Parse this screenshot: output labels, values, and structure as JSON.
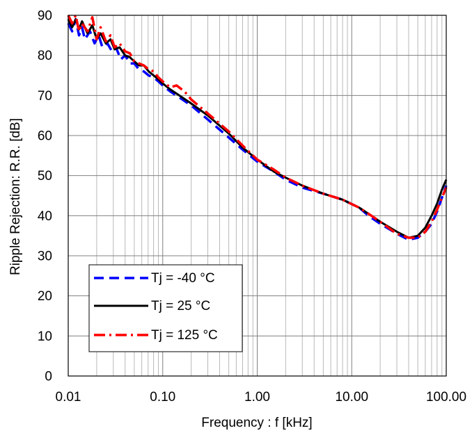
{
  "chart_data": {
    "type": "line",
    "xlabel": "Frequency : f [kHz]",
    "ylabel": "Ripple Rejection: R.R. [dB]",
    "x_scale": "log",
    "xlim": [
      0.01,
      100
    ],
    "ylim": [
      0,
      90
    ],
    "grid": true,
    "legend_position": "bottom-left",
    "x_ticks": [
      {
        "value": 0.01,
        "label": "0.01"
      },
      {
        "value": 0.1,
        "label": "0.10"
      },
      {
        "value": 1,
        "label": "1.00"
      },
      {
        "value": 10,
        "label": "10.00"
      },
      {
        "value": 100,
        "label": "100.00"
      }
    ],
    "y_ticks": [
      {
        "value": 0,
        "label": "0"
      },
      {
        "value": 10,
        "label": "10"
      },
      {
        "value": 20,
        "label": "20"
      },
      {
        "value": 30,
        "label": "30"
      },
      {
        "value": 40,
        "label": "40"
      },
      {
        "value": 50,
        "label": "50"
      },
      {
        "value": 60,
        "label": "60"
      },
      {
        "value": 70,
        "label": "70"
      },
      {
        "value": 80,
        "label": "80"
      },
      {
        "value": 90,
        "label": "90"
      }
    ],
    "series": [
      {
        "name": "Tj = -40 °C",
        "color": "#0000ff",
        "dash": "dashed",
        "points": [
          [
            0.01,
            88
          ],
          [
            0.011,
            86
          ],
          [
            0.012,
            89
          ],
          [
            0.013,
            85
          ],
          [
            0.014,
            87
          ],
          [
            0.015,
            84
          ],
          [
            0.017,
            86
          ],
          [
            0.019,
            83
          ],
          [
            0.021,
            85
          ],
          [
            0.023,
            82
          ],
          [
            0.026,
            83
          ],
          [
            0.029,
            81
          ],
          [
            0.032,
            82
          ],
          [
            0.036,
            79
          ],
          [
            0.04,
            80
          ],
          [
            0.045,
            78
          ],
          [
            0.05,
            78
          ],
          [
            0.056,
            76.5
          ],
          [
            0.063,
            76
          ],
          [
            0.071,
            75
          ],
          [
            0.08,
            74.5
          ],
          [
            0.09,
            73.5
          ],
          [
            0.1,
            72.5
          ],
          [
            0.12,
            71
          ],
          [
            0.15,
            69.5
          ],
          [
            0.2,
            67.5
          ],
          [
            0.3,
            64
          ],
          [
            0.5,
            59.5
          ],
          [
            0.7,
            56.5
          ],
          [
            1.0,
            53.5
          ],
          [
            1.5,
            51
          ],
          [
            2.0,
            49
          ],
          [
            3.0,
            47
          ],
          [
            5.0,
            45.5
          ],
          [
            8.0,
            44
          ],
          [
            12,
            42
          ],
          [
            15,
            40
          ],
          [
            20,
            38
          ],
          [
            30,
            35.5
          ],
          [
            40,
            34
          ],
          [
            50,
            34.5
          ],
          [
            60,
            36
          ],
          [
            70,
            38
          ],
          [
            80,
            41
          ],
          [
            90,
            44.5
          ],
          [
            100,
            47.5
          ]
        ]
      },
      {
        "name": "Tj = 25 °C",
        "color": "#000000",
        "dash": "solid",
        "points": [
          [
            0.01,
            89
          ],
          [
            0.011,
            87
          ],
          [
            0.012,
            89
          ],
          [
            0.013,
            86.5
          ],
          [
            0.014,
            88.5
          ],
          [
            0.016,
            85.5
          ],
          [
            0.018,
            87.5
          ],
          [
            0.02,
            84
          ],
          [
            0.022,
            85.5
          ],
          [
            0.025,
            83
          ],
          [
            0.028,
            84
          ],
          [
            0.031,
            81.5
          ],
          [
            0.035,
            82
          ],
          [
            0.04,
            80
          ],
          [
            0.045,
            79.5
          ],
          [
            0.05,
            78.5
          ],
          [
            0.056,
            77.5
          ],
          [
            0.063,
            77.5
          ],
          [
            0.071,
            76
          ],
          [
            0.08,
            75
          ],
          [
            0.09,
            74
          ],
          [
            0.1,
            73
          ],
          [
            0.12,
            71.5
          ],
          [
            0.15,
            70
          ],
          [
            0.2,
            68
          ],
          [
            0.3,
            65
          ],
          [
            0.5,
            60.5
          ],
          [
            0.7,
            57
          ],
          [
            1.0,
            54
          ],
          [
            1.5,
            51
          ],
          [
            2.0,
            49.5
          ],
          [
            3.0,
            47.5
          ],
          [
            5.0,
            45.5
          ],
          [
            8.0,
            44
          ],
          [
            12,
            42
          ],
          [
            15,
            40.5
          ],
          [
            20,
            38.5
          ],
          [
            30,
            36
          ],
          [
            40,
            34.5
          ],
          [
            50,
            35
          ],
          [
            60,
            37
          ],
          [
            70,
            40
          ],
          [
            80,
            43
          ],
          [
            90,
            46.5
          ],
          [
            100,
            49
          ]
        ]
      },
      {
        "name": "Tj = 125 °C",
        "color": "#ff0000",
        "dash": "dashdot",
        "points": [
          [
            0.01,
            90
          ],
          [
            0.011,
            88
          ],
          [
            0.012,
            90
          ],
          [
            0.013,
            86
          ],
          [
            0.014,
            88
          ],
          [
            0.016,
            86
          ],
          [
            0.018,
            89.5
          ],
          [
            0.02,
            84
          ],
          [
            0.022,
            87
          ],
          [
            0.025,
            83.5
          ],
          [
            0.028,
            85
          ],
          [
            0.031,
            82
          ],
          [
            0.035,
            83
          ],
          [
            0.04,
            81
          ],
          [
            0.045,
            80.5
          ],
          [
            0.05,
            78.5
          ],
          [
            0.056,
            78
          ],
          [
            0.063,
            77.5
          ],
          [
            0.071,
            76.5
          ],
          [
            0.08,
            76
          ],
          [
            0.09,
            74.5
          ],
          [
            0.1,
            73.5
          ],
          [
            0.12,
            72
          ],
          [
            0.14,
            72.5
          ],
          [
            0.17,
            71
          ],
          [
            0.2,
            69
          ],
          [
            0.3,
            65.5
          ],
          [
            0.5,
            61
          ],
          [
            0.7,
            57.5
          ],
          [
            1.0,
            54
          ],
          [
            1.5,
            51.5
          ],
          [
            2.0,
            49.5
          ],
          [
            3.0,
            47.5
          ],
          [
            5.0,
            45.5
          ],
          [
            8.0,
            44
          ],
          [
            12,
            42
          ],
          [
            15,
            40.5
          ],
          [
            20,
            38.5
          ],
          [
            30,
            35.5
          ],
          [
            40,
            34.5
          ],
          [
            50,
            34.5
          ],
          [
            60,
            36
          ],
          [
            70,
            38.5
          ],
          [
            80,
            41.5
          ],
          [
            90,
            44.5
          ],
          [
            100,
            47
          ]
        ]
      }
    ]
  }
}
